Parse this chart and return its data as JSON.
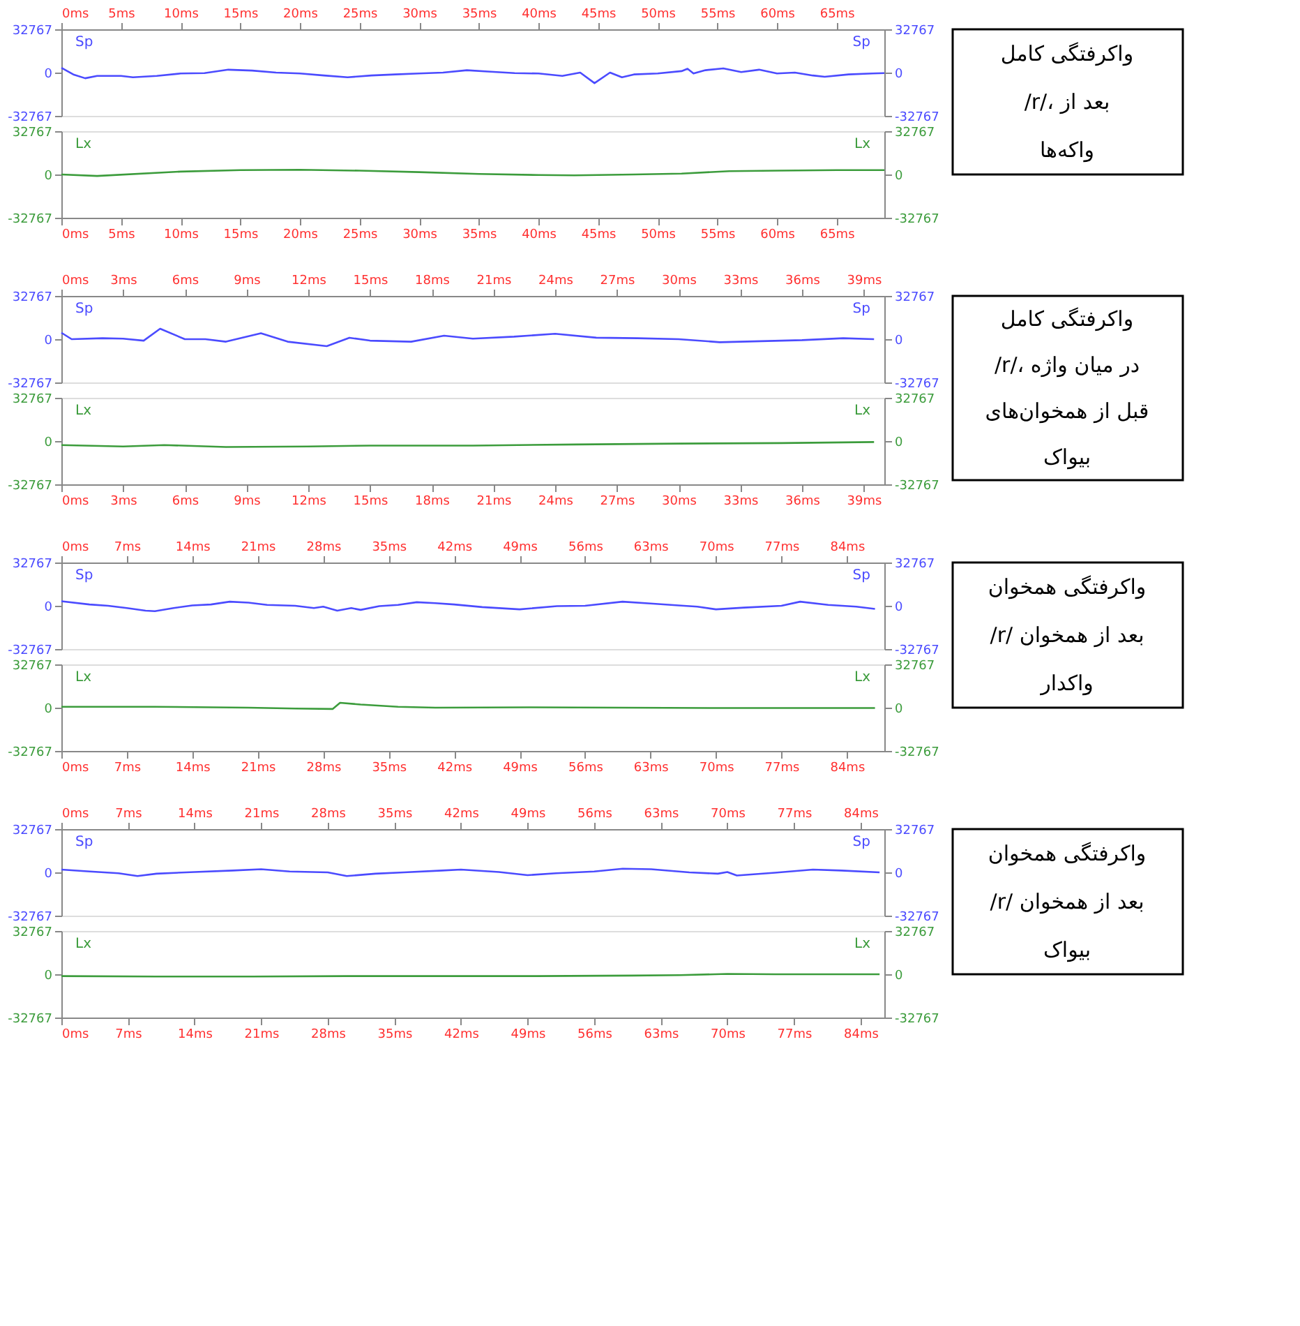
{
  "chart_data": [
    {
      "type": "line",
      "xlim": [
        0,
        69
      ],
      "xticks": [
        {
          "value": 0,
          "label": "0ms"
        },
        {
          "value": 5,
          "label": "5ms"
        },
        {
          "value": 10,
          "label": "10ms"
        },
        {
          "value": 15,
          "label": "15ms"
        },
        {
          "value": 20,
          "label": "20ms"
        },
        {
          "value": 25,
          "label": "25ms"
        },
        {
          "value": 30,
          "label": "30ms"
        },
        {
          "value": 35,
          "label": "35ms"
        },
        {
          "value": 40,
          "label": "40ms"
        },
        {
          "value": 45,
          "label": "45ms"
        },
        {
          "value": 50,
          "label": "50ms"
        },
        {
          "value": 55,
          "label": "55ms"
        },
        {
          "value": 60,
          "label": "60ms"
        },
        {
          "value": 65,
          "label": "65ms"
        }
      ],
      "ylim": [
        -32767,
        32767
      ],
      "yticks": [
        -32767,
        0,
        32767
      ],
      "y2lim": [
        -32767,
        32767
      ],
      "y2ticks": [
        -32767,
        0,
        32767
      ],
      "series": [
        {
          "name": "Sp",
          "color": "#4b4bff",
          "x": [
            0,
            1,
            2,
            3,
            5,
            6,
            8,
            10,
            12,
            14,
            16,
            18,
            20,
            22,
            24,
            26,
            28,
            30,
            32,
            34,
            36,
            38,
            40,
            42,
            43.5,
            44.7,
            46,
            47,
            48,
            50,
            52,
            52.5,
            53,
            54,
            55.5,
            57,
            58.5,
            60,
            61.5,
            63,
            64,
            66,
            68,
            69
          ],
          "values": [
            3600,
            -1400,
            -4300,
            -2500,
            -2500,
            -3600,
            -2500,
            -700,
            -400,
            2200,
            1500,
            0,
            -700,
            -2200,
            -3600,
            -2200,
            -1400,
            -700,
            0,
            1800,
            700,
            -400,
            -700,
            -2500,
            0,
            -8000,
            0,
            -3600,
            -1400,
            -700,
            1100,
            2900,
            -700,
            1800,
            3200,
            400,
            2200,
            -700,
            0,
            -2200,
            -3200,
            -1400,
            -700,
            -400
          ]
        }
      ]
    },
    {
      "type": "line",
      "xlim": [
        0,
        69
      ],
      "xticks": [
        {
          "value": 0,
          "label": "0ms"
        },
        {
          "value": 5,
          "label": "5ms"
        },
        {
          "value": 10,
          "label": "10ms"
        },
        {
          "value": 15,
          "label": "15ms"
        },
        {
          "value": 20,
          "label": "20ms"
        },
        {
          "value": 25,
          "label": "25ms"
        },
        {
          "value": 30,
          "label": "30ms"
        },
        {
          "value": 35,
          "label": "35ms"
        },
        {
          "value": 40,
          "label": "40ms"
        },
        {
          "value": 45,
          "label": "45ms"
        },
        {
          "value": 50,
          "label": "50ms"
        },
        {
          "value": 55,
          "label": "55ms"
        },
        {
          "value": 60,
          "label": "60ms"
        },
        {
          "value": 65,
          "label": "65ms"
        }
      ],
      "ylim": [
        -32767,
        32767
      ],
      "yticks": [
        -32767,
        0,
        32767
      ],
      "y2lim": [
        -32767,
        32767
      ],
      "y2ticks": [
        -32767,
        0,
        32767
      ],
      "series": [
        {
          "name": "Lx",
          "color": "#3c9c3c",
          "x": [
            0,
            3,
            10,
            15,
            20,
            25,
            30,
            35,
            40,
            43,
            48,
            52,
            56,
            60,
            65,
            69
          ],
          "values": [
            0,
            -1100,
            2200,
            3300,
            3600,
            2900,
            1800,
            400,
            -400,
            -700,
            0,
            700,
            2500,
            2900,
            3300,
            3300
          ]
        }
      ],
      "annotations": [
        "واکرفتگی کامل /r/، بعد از واکه‌ها"
      ]
    },
    {
      "type": "line",
      "xlim": [
        0,
        40
      ],
      "xticks": [
        {
          "value": 0,
          "label": "0ms"
        },
        {
          "value": 3,
          "label": "3ms"
        },
        {
          "value": 6,
          "label": "6ms"
        },
        {
          "value": 9,
          "label": "9ms"
        },
        {
          "value": 12,
          "label": "12ms"
        },
        {
          "value": 15,
          "label": "15ms"
        },
        {
          "value": 18,
          "label": "18ms"
        },
        {
          "value": 21,
          "label": "21ms"
        },
        {
          "value": 24,
          "label": "24ms"
        },
        {
          "value": 27,
          "label": "27ms"
        },
        {
          "value": 30,
          "label": "30ms"
        },
        {
          "value": 33,
          "label": "33ms"
        },
        {
          "value": 36,
          "label": "36ms"
        },
        {
          "value": 39,
          "label": "39ms"
        }
      ],
      "ylim": [
        -32767,
        32767
      ],
      "yticks": [
        -32767,
        0,
        32767
      ],
      "y2lim": [
        -32767,
        32767
      ],
      "y2ticks": [
        -32767,
        0,
        32767
      ],
      "series": [
        {
          "name": "Sp",
          "color": "#4b4bff",
          "x": [
            0,
            0.5,
            2,
            3,
            4,
            4.8,
            6,
            7,
            8,
            9.7,
            11,
            12.9,
            14,
            15,
            17,
            18.6,
            20,
            22,
            24,
            26,
            28,
            30,
            32,
            34,
            36,
            38,
            39.5
          ],
          "values": [
            4900,
            0,
            750,
            400,
            -1100,
            7900,
            0,
            0,
            -1900,
            4500,
            -1900,
            -5300,
            1100,
            -1100,
            -1900,
            2600,
            400,
            1900,
            4100,
            1100,
            750,
            0,
            -2300,
            -1500,
            -750,
            750,
            0
          ]
        }
      ]
    },
    {
      "type": "line",
      "xlim": [
        0,
        40
      ],
      "xticks": [
        {
          "value": 0,
          "label": "0ms"
        },
        {
          "value": 3,
          "label": "3ms"
        },
        {
          "value": 6,
          "label": "6ms"
        },
        {
          "value": 9,
          "label": "9ms"
        },
        {
          "value": 12,
          "label": "12ms"
        },
        {
          "value": 15,
          "label": "15ms"
        },
        {
          "value": 18,
          "label": "18ms"
        },
        {
          "value": 21,
          "label": "21ms"
        },
        {
          "value": 24,
          "label": "24ms"
        },
        {
          "value": 27,
          "label": "27ms"
        },
        {
          "value": 30,
          "label": "30ms"
        },
        {
          "value": 33,
          "label": "33ms"
        },
        {
          "value": 36,
          "label": "36ms"
        },
        {
          "value": 39,
          "label": "39ms"
        }
      ],
      "ylim": [
        -32767,
        32767
      ],
      "yticks": [
        -32767,
        0,
        32767
      ],
      "y2lim": [
        -32767,
        32767
      ],
      "y2ticks": [
        -32767,
        0,
        32767
      ],
      "series": [
        {
          "name": "Lx",
          "color": "#3c9c3c",
          "x": [
            0,
            3,
            5,
            8,
            12,
            15,
            20,
            25,
            30,
            35,
            39.5
          ],
          "values": [
            -3000,
            -4100,
            -3000,
            -4500,
            -4100,
            -3400,
            -3400,
            -2600,
            -1900,
            -1500,
            -750
          ]
        }
      ],
      "annotations": [
        "واکرفتگی کامل /r/، در میان واژه قبل از همخوان‌های بیواک"
      ]
    },
    {
      "type": "line",
      "xlim": [
        0,
        88
      ],
      "xticks": [
        {
          "value": 0,
          "label": "0ms"
        },
        {
          "value": 7,
          "label": "7ms"
        },
        {
          "value": 14,
          "label": "14ms"
        },
        {
          "value": 21,
          "label": "21ms"
        },
        {
          "value": 28,
          "label": "28ms"
        },
        {
          "value": 35,
          "label": "35ms"
        },
        {
          "value": 42,
          "label": "42ms"
        },
        {
          "value": 49,
          "label": "49ms"
        },
        {
          "value": 56,
          "label": "56ms"
        },
        {
          "value": 63,
          "label": "63ms"
        },
        {
          "value": 70,
          "label": "70ms"
        },
        {
          "value": 77,
          "label": "77ms"
        },
        {
          "value": 84,
          "label": "84ms"
        }
      ],
      "ylim": [
        -32767,
        32767
      ],
      "yticks": [
        -32767,
        0,
        32767
      ],
      "y2lim": [
        -32767,
        32767
      ],
      "y2ticks": [
        -32767,
        0,
        32767
      ],
      "series": [
        {
          "name": "Sp",
          "color": "#4b4bff",
          "x": [
            0,
            3,
            5,
            7,
            9,
            10,
            12,
            14,
            16,
            18,
            20,
            22,
            25,
            27,
            28,
            29.5,
            31,
            32,
            34,
            36,
            38,
            40,
            42,
            45,
            49,
            53,
            56,
            60,
            63,
            66,
            68,
            70,
            73,
            77,
            79,
            82,
            85,
            87
          ],
          "values": [
            3400,
            1000,
            0,
            -1700,
            -3700,
            -4100,
            -1700,
            300,
            1000,
            3100,
            2400,
            700,
            0,
            -1700,
            -700,
            -3700,
            -1700,
            -3100,
            -300,
            700,
            2700,
            2000,
            1000,
            -1000,
            -2700,
            -300,
            0,
            3100,
            1700,
            300,
            -700,
            -2700,
            -1400,
            0,
            3100,
            700,
            -700,
            -2400
          ]
        }
      ]
    },
    {
      "type": "line",
      "xlim": [
        0,
        88
      ],
      "xticks": [
        {
          "value": 0,
          "label": "0ms"
        },
        {
          "value": 7,
          "label": "7ms"
        },
        {
          "value": 14,
          "label": "14ms"
        },
        {
          "value": 21,
          "label": "21ms"
        },
        {
          "value": 28,
          "label": "28ms"
        },
        {
          "value": 35,
          "label": "35ms"
        },
        {
          "value": 42,
          "label": "42ms"
        },
        {
          "value": 49,
          "label": "49ms"
        },
        {
          "value": 56,
          "label": "56ms"
        },
        {
          "value": 63,
          "label": "63ms"
        },
        {
          "value": 70,
          "label": "70ms"
        },
        {
          "value": 77,
          "label": "77ms"
        },
        {
          "value": 84,
          "label": "84ms"
        }
      ],
      "ylim": [
        -32767,
        32767
      ],
      "yticks": [
        -32767,
        0,
        32767
      ],
      "y2lim": [
        -32767,
        32767
      ],
      "y2ticks": [
        -32767,
        0,
        32767
      ],
      "series": [
        {
          "name": "Lx",
          "color": "#3c9c3c",
          "x": [
            0,
            10,
            20,
            25,
            29,
            29.8,
            32,
            36,
            40,
            50,
            60,
            70,
            80,
            87
          ],
          "values": [
            700,
            700,
            0,
            -700,
            -1000,
            3700,
            2400,
            700,
            0,
            300,
            0,
            -300,
            -300,
            -300
          ]
        }
      ],
      "annotations": [
        "واکرفتگی همخوان /r/ بعد از همخوان واکدار"
      ]
    },
    {
      "type": "line",
      "xlim": [
        0,
        86.5
      ],
      "xticks": [
        {
          "value": 0,
          "label": "0ms"
        },
        {
          "value": 7,
          "label": "7ms"
        },
        {
          "value": 14,
          "label": "14ms"
        },
        {
          "value": 21,
          "label": "21ms"
        },
        {
          "value": 28,
          "label": "28ms"
        },
        {
          "value": 35,
          "label": "35ms"
        },
        {
          "value": 42,
          "label": "42ms"
        },
        {
          "value": 49,
          "label": "49ms"
        },
        {
          "value": 56,
          "label": "56ms"
        },
        {
          "value": 63,
          "label": "63ms"
        },
        {
          "value": 70,
          "label": "70ms"
        },
        {
          "value": 77,
          "label": "77ms"
        },
        {
          "value": 84,
          "label": "84ms"
        }
      ],
      "ylim": [
        -32767,
        32767
      ],
      "yticks": [
        -32767,
        0,
        32767
      ],
      "y2lim": [
        -32767,
        32767
      ],
      "y2ticks": [
        -32767,
        0,
        32767
      ],
      "series": [
        {
          "name": "Sp",
          "color": "#4b4bff",
          "x": [
            0,
            3,
            6,
            8,
            10,
            14,
            18,
            21,
            24,
            28,
            30,
            33,
            36,
            40,
            42,
            46,
            49,
            52,
            56,
            59,
            62,
            66,
            69,
            70,
            71,
            75,
            79,
            82,
            86
          ],
          "values": [
            2100,
            700,
            -700,
            -2800,
            -1000,
            300,
            1400,
            2400,
            700,
            0,
            -2800,
            -1000,
            0,
            1400,
            2100,
            300,
            -2100,
            -700,
            700,
            2800,
            2400,
            0,
            -1000,
            300,
            -2400,
            -300,
            2100,
            1400,
            0
          ]
        }
      ]
    },
    {
      "type": "line",
      "xlim": [
        0,
        86.5
      ],
      "xticks": [
        {
          "value": 0,
          "label": "0ms"
        },
        {
          "value": 7,
          "label": "7ms"
        },
        {
          "value": 14,
          "label": "14ms"
        },
        {
          "value": 21,
          "label": "21ms"
        },
        {
          "value": 28,
          "label": "28ms"
        },
        {
          "value": 35,
          "label": "35ms"
        },
        {
          "value": 42,
          "label": "42ms"
        },
        {
          "value": 49,
          "label": "49ms"
        },
        {
          "value": 56,
          "label": "56ms"
        },
        {
          "value": 63,
          "label": "63ms"
        },
        {
          "value": 70,
          "label": "70ms"
        },
        {
          "value": 77,
          "label": "77ms"
        },
        {
          "value": 84,
          "label": "84ms"
        }
      ],
      "ylim": [
        -32767,
        32767
      ],
      "yticks": [
        -32767,
        0,
        32767
      ],
      "y2lim": [
        -32767,
        32767
      ],
      "y2ticks": [
        -32767,
        0,
        32767
      ],
      "series": [
        {
          "name": "Lx",
          "color": "#3c9c3c",
          "x": [
            0,
            10,
            20,
            30,
            40,
            50,
            60,
            65,
            70,
            75,
            86
          ],
          "values": [
            -1400,
            -1700,
            -1700,
            -1400,
            -1400,
            -1400,
            -1000,
            -700,
            300,
            0,
            0
          ]
        }
      ],
      "annotations": [
        "واکرفتگی همخوان /r/  بعد از همخوان بیواک"
      ]
    }
  ]
}
